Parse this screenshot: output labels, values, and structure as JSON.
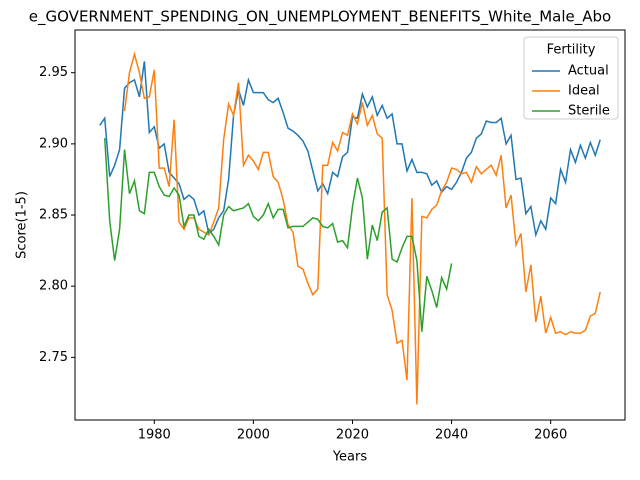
{
  "chart_data": {
    "type": "line",
    "title": "e_GOVERNMENT_SPENDING_ON_UNEMPLOYMENT_BENEFITS_White_Male_Abo",
    "xlabel": "Years",
    "ylabel": "Score(1-5)",
    "legend_title": "Fertility",
    "legend": "upper right",
    "x": [
      1969,
      1970,
      1971,
      1972,
      1973,
      1974,
      1975,
      1976,
      1977,
      1978,
      1979,
      1980,
      1981,
      1982,
      1983,
      1984,
      1985,
      1986,
      1987,
      1988,
      1989,
      1990,
      1991,
      1992,
      1993,
      1994,
      1995,
      1996,
      1997,
      1998,
      1999,
      2000,
      2001,
      2002,
      2003,
      2004,
      2005,
      2006,
      2007,
      2008,
      2009,
      2010,
      2011,
      2012,
      2013,
      2014,
      2015,
      2016,
      2017,
      2018,
      2019,
      2020,
      2021,
      2022,
      2023,
      2024,
      2025,
      2026,
      2027,
      2028,
      2029,
      2030,
      2031,
      2032,
      2033,
      2034,
      2035,
      2036,
      2037,
      2038,
      2039,
      2040,
      2041,
      2042,
      2043,
      2044,
      2045,
      2046,
      2047,
      2048,
      2049,
      2050,
      2051,
      2052,
      2053,
      2054,
      2055,
      2056,
      2057,
      2058,
      2059,
      2060,
      2061,
      2062,
      2063,
      2064,
      2065,
      2066,
      2067,
      2068,
      2069,
      2070
    ],
    "series": [
      {
        "name": "Actual",
        "color": "#1f77b4",
        "values": [
          2.913,
          2.918,
          2.877,
          2.885,
          2.896,
          2.939,
          2.943,
          2.945,
          2.933,
          2.958,
          2.908,
          2.912,
          2.897,
          2.9,
          2.88,
          2.876,
          2.872,
          2.861,
          2.864,
          2.861,
          2.85,
          2.853,
          2.837,
          2.84,
          2.848,
          2.853,
          2.875,
          2.92,
          2.938,
          2.927,
          2.945,
          2.936,
          2.936,
          2.936,
          2.931,
          2.929,
          2.932,
          2.922,
          2.911,
          2.909,
          2.906,
          2.902,
          2.895,
          2.881,
          2.867,
          2.872,
          2.865,
          2.88,
          2.877,
          2.891,
          2.894,
          2.919,
          2.918,
          2.935,
          2.926,
          2.933,
          2.92,
          2.927,
          2.918,
          2.921,
          2.9,
          2.9,
          2.881,
          2.889,
          2.88,
          2.88,
          2.879,
          2.871,
          2.874,
          2.866,
          2.87,
          2.868,
          2.873,
          2.88,
          2.89,
          2.894,
          2.904,
          2.907,
          2.916,
          2.915,
          2.915,
          2.918,
          2.9,
          2.906,
          2.875,
          2.876,
          2.851,
          2.856,
          2.836,
          2.846,
          2.84,
          2.862,
          2.858,
          2.882,
          2.873,
          2.896,
          2.887,
          2.899,
          2.89,
          2.901,
          2.892,
          2.903
        ]
      },
      {
        "name": "Ideal",
        "color": "#ff7f0e",
        "values": [
          null,
          null,
          null,
          null,
          null,
          2.923,
          2.95,
          2.963,
          2.95,
          2.932,
          2.933,
          2.952,
          2.883,
          2.883,
          2.87,
          2.917,
          2.845,
          2.84,
          2.848,
          2.848,
          2.84,
          2.838,
          2.836,
          2.845,
          2.855,
          2.903,
          2.928,
          2.92,
          2.943,
          2.885,
          2.892,
          2.888,
          2.882,
          2.894,
          2.894,
          2.877,
          2.873,
          2.861,
          2.843,
          2.838,
          2.814,
          2.812,
          2.802,
          2.794,
          2.798,
          2.885,
          2.885,
          2.901,
          2.895,
          2.908,
          2.906,
          2.921,
          2.914,
          2.929,
          2.913,
          2.92,
          2.907,
          2.904,
          2.794,
          2.783,
          2.76,
          2.762,
          2.734,
          2.862,
          2.717,
          2.849,
          2.848,
          2.854,
          2.857,
          2.867,
          2.873,
          2.883,
          2.882,
          2.879,
          2.88,
          2.873,
          2.884,
          2.879,
          2.882,
          2.885,
          2.878,
          2.892,
          2.855,
          2.864,
          2.829,
          2.837,
          2.796,
          2.815,
          2.775,
          2.793,
          2.767,
          2.778,
          2.767,
          2.768,
          2.766,
          2.768,
          2.767,
          2.767,
          2.769,
          2.779,
          2.781,
          2.796
        ]
      },
      {
        "name": "Sterile",
        "color": "#2ca02c",
        "values": [
          null,
          2.904,
          2.846,
          2.818,
          2.84,
          2.896,
          2.865,
          2.874,
          2.853,
          2.851,
          2.88,
          2.88,
          2.87,
          2.864,
          2.863,
          2.869,
          2.864,
          2.842,
          2.85,
          2.85,
          2.835,
          2.833,
          2.84,
          2.835,
          2.829,
          2.85,
          2.856,
          2.853,
          2.854,
          2.855,
          2.858,
          2.849,
          2.846,
          2.85,
          2.858,
          2.848,
          2.854,
          2.854,
          2.841,
          2.842,
          2.842,
          2.842,
          2.845,
          2.848,
          2.847,
          2.842,
          2.841,
          2.844,
          2.831,
          2.832,
          2.827,
          2.856,
          2.876,
          2.862,
          2.819,
          2.843,
          2.832,
          2.852,
          2.855,
          2.819,
          2.817,
          2.827,
          2.835,
          2.835,
          2.818,
          2.768,
          2.807,
          2.797,
          2.785,
          2.806,
          2.798,
          2.816,
          null,
          null,
          null,
          null,
          null,
          null,
          null,
          null,
          null,
          null,
          null,
          null,
          null,
          null,
          null,
          null,
          null,
          null,
          null,
          null,
          null,
          null,
          null,
          null,
          null,
          null,
          null,
          null,
          null,
          null
        ]
      }
    ],
    "xlim": [
      1964,
      2075
    ],
    "xticks": [
      1980,
      2000,
      2020,
      2040,
      2060
    ],
    "ylim": [
      2.706,
      2.98
    ],
    "yticks": [
      2.75,
      {
        "value": 2.8,
        "label": "2.80"
      },
      2.85,
      {
        "value": 2.9,
        "label": "2.90"
      },
      2.95
    ],
    "grid": false
  }
}
